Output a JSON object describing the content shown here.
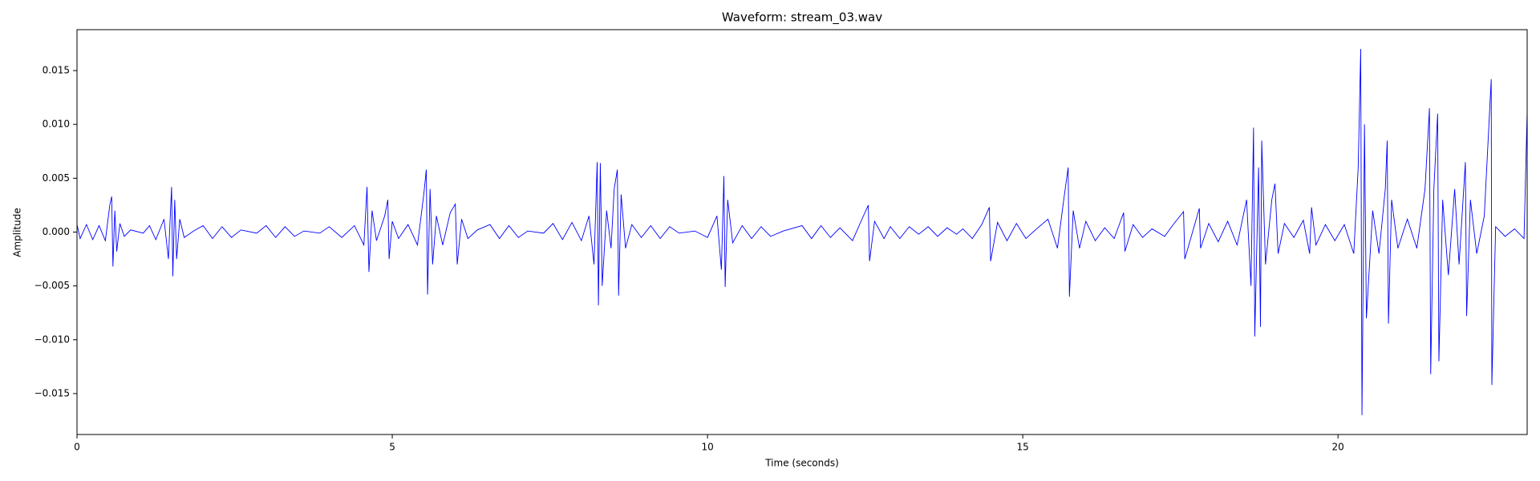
{
  "chart_data": {
    "type": "line",
    "title": "Waveform: stream_03.wav",
    "xlabel": "Time (seconds)",
    "ylabel": "Amplitude",
    "xlim": [
      0,
      23
    ],
    "ylim": [
      -0.0188,
      0.0188
    ],
    "xticks": [
      0,
      5,
      10,
      15,
      20
    ],
    "yticks": [
      {
        "value": -0.015,
        "label": "−0.015"
      },
      {
        "value": -0.01,
        "label": "−0.010"
      },
      {
        "value": -0.005,
        "label": "−0.005"
      },
      {
        "value": 0,
        "label": "0.000"
      },
      0.005,
      {
        "value": 0.01,
        "label": "0.010"
      },
      0.015
    ],
    "grid": false,
    "series": [
      {
        "color": "#0000ff",
        "x": [
          0.0,
          0.05,
          0.15,
          0.25,
          0.35,
          0.45,
          0.52,
          0.55,
          0.57,
          0.6,
          0.63,
          0.68,
          0.75,
          0.85,
          1.05,
          1.15,
          1.25,
          1.38,
          1.45,
          1.5,
          1.52,
          1.55,
          1.58,
          1.63,
          1.7,
          1.85,
          2.0,
          2.15,
          2.3,
          2.45,
          2.6,
          2.85,
          3.0,
          3.15,
          3.3,
          3.45,
          3.6,
          3.85,
          4.0,
          4.2,
          4.4,
          4.55,
          4.6,
          4.63,
          4.68,
          4.75,
          4.88,
          4.93,
          4.95,
          5.0,
          5.1,
          5.25,
          5.4,
          5.5,
          5.54,
          5.56,
          5.6,
          5.64,
          5.7,
          5.8,
          5.92,
          6.0,
          6.03,
          6.1,
          6.2,
          6.35,
          6.55,
          6.7,
          6.85,
          7.0,
          7.15,
          7.4,
          7.55,
          7.7,
          7.85,
          8.0,
          8.12,
          8.2,
          8.25,
          8.27,
          8.3,
          8.33,
          8.4,
          8.47,
          8.52,
          8.57,
          8.59,
          8.63,
          8.7,
          8.8,
          8.95,
          9.1,
          9.25,
          9.4,
          9.55,
          9.8,
          10.0,
          10.15,
          10.22,
          10.26,
          10.28,
          10.32,
          10.4,
          10.55,
          10.7,
          10.85,
          11.0,
          11.2,
          11.5,
          11.65,
          11.8,
          11.95,
          12.1,
          12.3,
          12.45,
          12.55,
          12.57,
          12.65,
          12.8,
          12.9,
          13.05,
          13.2,
          13.35,
          13.5,
          13.65,
          13.8,
          13.95,
          14.05,
          14.2,
          14.35,
          14.47,
          14.49,
          14.6,
          14.75,
          14.9,
          15.05,
          15.2,
          15.4,
          15.55,
          15.65,
          15.72,
          15.74,
          15.8,
          15.9,
          16.0,
          16.15,
          16.3,
          16.45,
          16.6,
          16.62,
          16.75,
          16.9,
          17.05,
          17.25,
          17.4,
          17.55,
          17.57,
          17.8,
          17.82,
          17.95,
          18.1,
          18.25,
          18.4,
          18.55,
          18.62,
          18.66,
          18.68,
          18.74,
          18.77,
          18.79,
          18.85,
          18.95,
          19.0,
          19.05,
          19.15,
          19.3,
          19.45,
          19.55,
          19.58,
          19.65,
          19.8,
          19.95,
          20.1,
          20.25,
          20.32,
          20.36,
          20.38,
          20.42,
          20.45,
          20.55,
          20.65,
          20.75,
          20.78,
          20.8,
          20.85,
          20.95,
          21.1,
          21.25,
          21.38,
          21.45,
          21.47,
          21.52,
          21.58,
          21.6,
          21.66,
          21.75,
          21.85,
          21.92,
          22.02,
          22.04,
          22.1,
          22.2,
          22.32,
          22.43,
          22.44,
          22.5,
          22.65,
          22.8,
          22.95,
          23.0,
          23.0
        ],
        "values": [
          0.0007,
          -0.0006,
          0.0007,
          -0.0007,
          0.0006,
          -0.0008,
          0.0025,
          0.0033,
          -0.0032,
          0.002,
          -0.0018,
          0.0008,
          -0.0004,
          0.0002,
          -0.0001,
          0.0006,
          -0.0007,
          0.0012,
          -0.0025,
          0.0042,
          -0.0041,
          0.003,
          -0.0025,
          0.0012,
          -0.0005,
          0.0001,
          0.0006,
          -0.0006,
          0.0005,
          -0.0005,
          0.0002,
          -0.0001,
          0.0006,
          -0.0005,
          0.0005,
          -0.0004,
          0.0001,
          -0.0001,
          0.0005,
          -0.0005,
          0.0006,
          -0.0012,
          0.0042,
          -0.0037,
          0.002,
          -0.0008,
          0.0015,
          0.003,
          -0.0025,
          0.001,
          -0.0006,
          0.0007,
          -0.0012,
          0.0035,
          0.0058,
          -0.0058,
          0.004,
          -0.003,
          0.0015,
          -0.0012,
          0.0018,
          0.0026,
          -0.003,
          0.0012,
          -0.0006,
          0.0002,
          0.0007,
          -0.0006,
          0.0006,
          -0.0005,
          0.0001,
          -0.0001,
          0.0008,
          -0.0007,
          0.0009,
          -0.0008,
          0.0015,
          -0.003,
          0.0065,
          -0.0068,
          0.0064,
          -0.005,
          0.002,
          -0.0015,
          0.004,
          0.0058,
          -0.0059,
          0.0035,
          -0.0015,
          0.0007,
          -0.0005,
          0.0006,
          -0.0006,
          0.0005,
          -0.0001,
          0.0001,
          -0.0005,
          0.0015,
          -0.0035,
          0.0052,
          -0.0051,
          0.003,
          -0.001,
          0.0006,
          -0.0006,
          0.0005,
          -0.0004,
          0.0001,
          0.0006,
          -0.0006,
          0.0006,
          -0.0005,
          0.0004,
          -0.0008,
          0.0012,
          0.0025,
          -0.0027,
          0.001,
          -0.0006,
          0.0005,
          -0.0006,
          0.0005,
          -0.0002,
          0.0005,
          -0.0004,
          0.0004,
          -0.0002,
          0.0003,
          -0.0006,
          0.0007,
          0.0023,
          -0.0027,
          0.0009,
          -0.0008,
          0.0008,
          -0.0006,
          0.0002,
          0.0012,
          -0.0015,
          0.003,
          0.006,
          -0.006,
          0.002,
          -0.0015,
          0.001,
          -0.0008,
          0.0004,
          -0.0006,
          0.0018,
          -0.0018,
          0.0007,
          -0.0005,
          0.0003,
          -0.0004,
          0.0008,
          0.0019,
          -0.0025,
          0.0022,
          -0.0015,
          0.0008,
          -0.0009,
          0.001,
          -0.0012,
          0.003,
          -0.005,
          0.0097,
          -0.0097,
          0.006,
          -0.0088,
          0.0085,
          -0.003,
          0.003,
          0.0045,
          -0.002,
          0.0008,
          -0.0005,
          0.0011,
          -0.002,
          0.0023,
          -0.0012,
          0.0007,
          -0.0008,
          0.0007,
          -0.002,
          0.006,
          0.017,
          -0.017,
          0.01,
          -0.008,
          0.002,
          -0.002,
          0.004,
          0.0085,
          -0.0085,
          0.003,
          -0.0015,
          0.0012,
          -0.0015,
          0.004,
          0.0115,
          -0.0132,
          0.004,
          0.011,
          -0.012,
          0.003,
          -0.004,
          0.004,
          -0.003,
          0.0065,
          -0.0078,
          0.003,
          -0.002,
          0.0015,
          0.0142,
          -0.0142,
          0.0005,
          -0.0004,
          0.0003,
          -0.0006,
          0.0112,
          -0.0112
        ]
      }
    ]
  }
}
